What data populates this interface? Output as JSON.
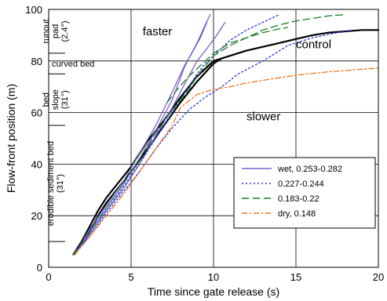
{
  "chart_data": {
    "type": "line",
    "xlabel": "Time since gate release (s)",
    "ylabel": "Flow-front position (m)",
    "xlim": [
      0,
      20
    ],
    "ylim": [
      0,
      100
    ],
    "x_ticks": [
      0,
      5,
      10,
      15,
      20
    ],
    "y_ticks": [
      0,
      20,
      40,
      60,
      80,
      100
    ],
    "grid": true,
    "legend_position": "bottom-right",
    "zone_labels": [
      {
        "text": "runout pad (2.4°)",
        "lines": [
          "runout",
          "pad",
          "(2.4°)"
        ],
        "y_from": 83,
        "y_to": 100
      },
      {
        "text": "curved bed",
        "lines": [
          "curved bed"
        ],
        "y_from": 75,
        "y_to": 83
      },
      {
        "text": "bed slope (31°)",
        "lines": [
          "bed",
          "slope",
          "(31°)"
        ],
        "y_from": 55,
        "y_to": 75
      },
      {
        "text": "erodible sediment bed (31°)",
        "lines": [
          "erodible sediment bed",
          "(31°)"
        ],
        "y_from": 10,
        "y_to": 55
      }
    ],
    "annotations": [
      "faster",
      "slower",
      "control"
    ],
    "series": [
      {
        "name": "control",
        "legend": false,
        "color": "#000000",
        "style": "solid",
        "runs": [
          {
            "x": [
              1.5,
              2.0,
              2.5,
              3.0,
              3.5,
              4.0,
              5.0,
              6.0,
              7.0,
              8.0,
              9.0,
              10.0,
              11.0,
              12.0,
              13.0,
              14.0,
              15.0,
              16.0,
              17.0,
              18.0,
              19.0,
              20.0
            ],
            "y": [
              5,
              10,
              16,
              22,
              27,
              31,
              39,
              49,
              57,
              66,
              74,
              80,
              82,
              84,
              85.5,
              87,
              88.5,
              90,
              91,
              91.5,
              92,
              92
            ]
          },
          {
            "x": [
              1.5,
              2.0,
              2.5,
              3.0,
              3.5,
              4.0,
              5.0,
              6.0,
              7.0,
              8.0,
              9.0,
              10.0,
              10.5
            ],
            "y": [
              5,
              9,
              14,
              20,
              25,
              29,
              37,
              46,
              55,
              64,
              72,
              79,
              81
            ]
          }
        ]
      },
      {
        "name": "wet, 0.253-0.282",
        "legend": true,
        "color": "#7b62c8",
        "style": "solid",
        "runs": [
          {
            "x": [
              1.7,
              2.5,
              3.5,
              4.5,
              5.5,
              6.5,
              7.5,
              8.2,
              8.5,
              9.0,
              9.5,
              9.8
            ],
            "y": [
              6,
              14,
              23,
              32,
              42,
              53,
              65,
              77,
              81,
              87,
              94,
              98
            ]
          },
          {
            "x": [
              1.6,
              2.5,
              3.5,
              4.5,
              5.5,
              6.5,
              7.5,
              8.3,
              8.6,
              9.2,
              9.6
            ],
            "y": [
              5,
              15,
              24,
              33,
              44,
              55,
              68,
              79,
              82,
              89,
              95
            ]
          },
          {
            "x": [
              1.5,
              2.5,
              3.5,
              4.5,
              5.5,
              6.5,
              7.5,
              8.5,
              9.0,
              9.5,
              10.2,
              10.7
            ],
            "y": [
              5,
              13,
              22,
              30,
              40,
              51,
              62,
              74,
              80,
              84,
              90,
              95
            ]
          }
        ]
      },
      {
        "name": "0.227-0.244",
        "legend": true,
        "color": "#2b36e0",
        "style": "dotted",
        "runs": [
          {
            "x": [
              1.6,
              2.5,
              3.5,
              4.5,
              5.5,
              6.5,
              7.5,
              8.5,
              9.0,
              9.5,
              10.0,
              11.0,
              12.0,
              13.0,
              14.0
            ],
            "y": [
              5,
              13,
              22,
              31,
              40,
              50,
              60,
              70,
              75,
              79,
              82,
              88,
              92,
              95,
              98
            ]
          },
          {
            "x": [
              1.6,
              2.5,
              3.5,
              4.5,
              5.5,
              6.5,
              7.5,
              8.5,
              9.5,
              10.5,
              11.5,
              13.0,
              14.5,
              16.0,
              17.5,
              18.5
            ],
            "y": [
              6,
              12,
              21,
              29,
              37,
              46,
              54,
              61,
              66,
              70,
              75,
              80,
              86,
              89,
              91,
              92
            ]
          }
        ]
      },
      {
        "name": "0.183-0.22",
        "legend": true,
        "color": "#1f7d28",
        "style": "dashed",
        "runs": [
          {
            "x": [
              1.5,
              2.5,
              3.5,
              4.5,
              5.5,
              6.5,
              7.5,
              8.5,
              9.0,
              9.5,
              10.0,
              11.0,
              12.0,
              13.0,
              14.0,
              15.0,
              16.0,
              17.0,
              18.0
            ],
            "y": [
              5,
              14,
              23,
              32,
              42,
              52,
              61,
              69,
              74,
              78,
              82,
              86,
              89,
              92,
              94,
              95.5,
              96.5,
              97.5,
              98
            ]
          },
          {
            "x": [
              7.2,
              7.8,
              8.5,
              9.0,
              9.5,
              10.0,
              10.5,
              11.0,
              12.0,
              13.0,
              14.0,
              14.5
            ],
            "y": [
              64,
              69,
              74,
              77,
              80,
              83,
              85,
              87,
              89,
              91,
              92.5,
              93
            ]
          }
        ]
      },
      {
        "name": "dry, 0.148",
        "legend": true,
        "color": "#f07820",
        "style": "dashdot",
        "runs": [
          {
            "x": [
              1.6,
              2.5,
              3.5,
              4.5,
              5.5,
              6.5,
              7.5,
              8.0,
              9.0,
              10.0,
              11.0,
              12.0,
              13.0,
              14.0,
              15.0,
              16.0,
              17.0,
              18.0,
              19.0,
              20.0
            ],
            "y": [
              5,
              12,
              20,
              28,
              37,
              46,
              55,
              62,
              67,
              69,
              70,
              71.5,
              72.5,
              73.5,
              74.5,
              75.2,
              75.8,
              76.3,
              76.8,
              77.2
            ]
          }
        ]
      }
    ]
  }
}
